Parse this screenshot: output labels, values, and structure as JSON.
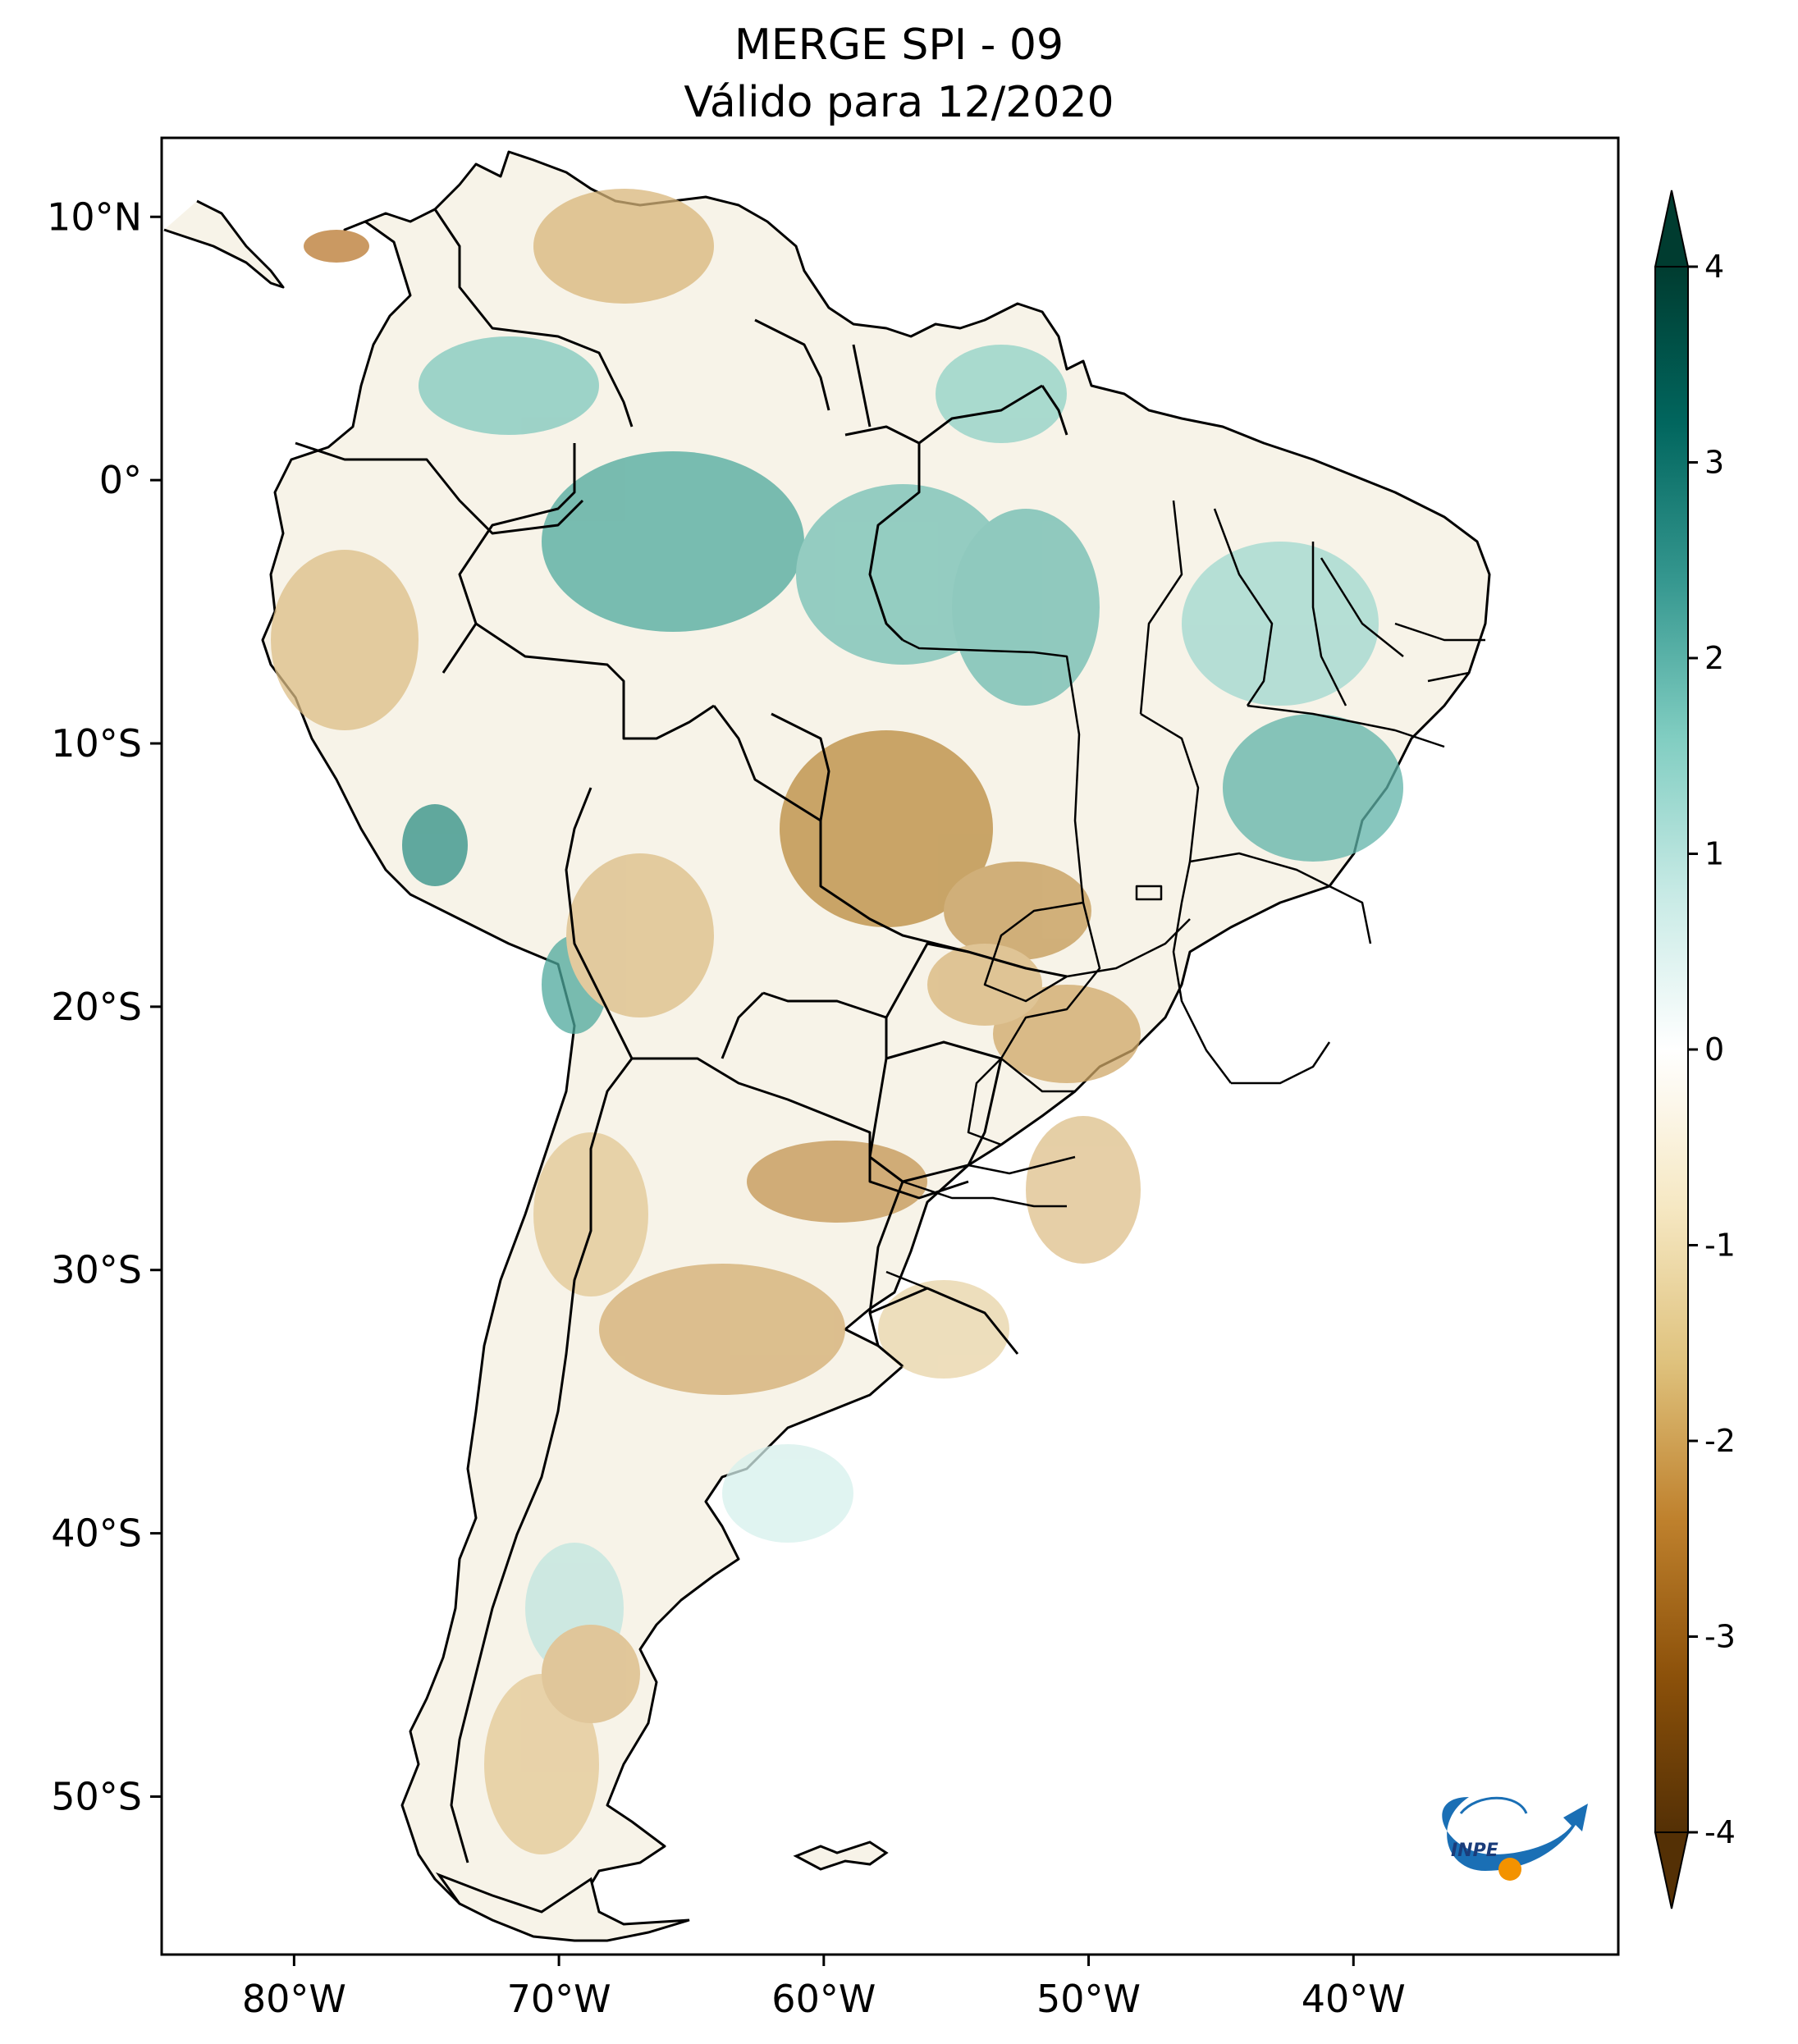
{
  "title": {
    "line1": "MERGE   SPI - 09",
    "line2": "Válido para 12/2020"
  },
  "map": {
    "region": "South America",
    "variable": "SPI - 09",
    "lon_range": [
      -85,
      -30
    ],
    "lat_range": [
      -56,
      13
    ],
    "lon_ticks": [
      {
        "value": -80,
        "label": "80°W"
      },
      {
        "value": -70,
        "label": "70°W"
      },
      {
        "value": -60,
        "label": "60°W"
      },
      {
        "value": -50,
        "label": "50°W"
      },
      {
        "value": -40,
        "label": "40°W"
      }
    ],
    "lat_ticks": [
      {
        "value": 10,
        "label": "10°N"
      },
      {
        "value": 0,
        "label": "0°"
      },
      {
        "value": -10,
        "label": "10°S"
      },
      {
        "value": -20,
        "label": "20°S"
      },
      {
        "value": -30,
        "label": "30°S"
      },
      {
        "value": -40,
        "label": "40°S"
      },
      {
        "value": -50,
        "label": "50°S"
      }
    ]
  },
  "colorbar": {
    "min": -4,
    "max": 4,
    "extend": "both",
    "ticks": [
      {
        "value": 4,
        "label": "4"
      },
      {
        "value": 3,
        "label": "3"
      },
      {
        "value": 2,
        "label": "2"
      },
      {
        "value": 1,
        "label": "1"
      },
      {
        "value": 0,
        "label": "0"
      },
      {
        "value": -1,
        "label": "-1"
      },
      {
        "value": -2,
        "label": "-2"
      },
      {
        "value": -3,
        "label": "-3"
      },
      {
        "value": -4,
        "label": "-4"
      }
    ],
    "colors": [
      "#543005",
      "#8c510a",
      "#bf812d",
      "#dfc27d",
      "#f6e8c3",
      "#ffffff",
      "#c7eae5",
      "#80cdc1",
      "#35978f",
      "#01665e",
      "#003c30"
    ]
  },
  "logo": {
    "text": "INPE",
    "colors": {
      "blue": "#1a6fb5",
      "orange": "#f39200"
    }
  }
}
